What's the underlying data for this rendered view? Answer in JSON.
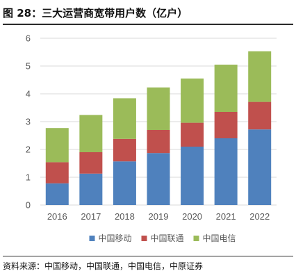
{
  "header": {
    "title": "图 28：三大运营商宽带用户数（亿户）"
  },
  "footer": {
    "source": "资料来源：中国移动，中国联通，中国电信，中原证券"
  },
  "chart_data": {
    "type": "bar",
    "stacked": true,
    "title": "",
    "xlabel": "",
    "ylabel": "",
    "categories": [
      "2016",
      "2017",
      "2018",
      "2019",
      "2020",
      "2021",
      "2022"
    ],
    "ylim": [
      0,
      6
    ],
    "yticks": [
      0,
      1,
      2,
      3,
      4,
      5,
      6
    ],
    "grid": true,
    "legend": "bottom",
    "series": [
      {
        "name": "中国移动",
        "color": "#4F81BD",
        "values": [
          0.78,
          1.13,
          1.57,
          1.87,
          2.1,
          2.4,
          2.72
        ]
      },
      {
        "name": "中国联通",
        "color": "#C0504D",
        "values": [
          0.76,
          0.77,
          0.81,
          0.83,
          0.86,
          0.95,
          0.99
        ]
      },
      {
        "name": "中国电信",
        "color": "#9BBB59",
        "values": [
          1.23,
          1.34,
          1.46,
          1.53,
          1.59,
          1.7,
          1.82
        ]
      }
    ]
  }
}
